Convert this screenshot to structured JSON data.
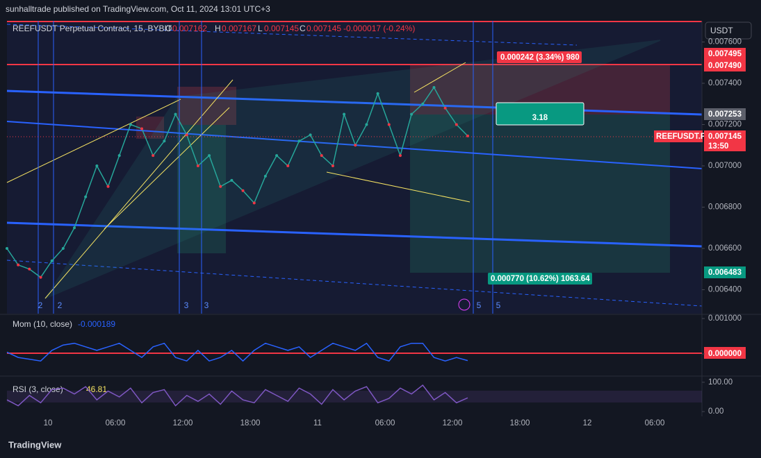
{
  "header": {
    "published": "sunhalltrade published on TradingView.com, Oct 11, 2024 13:01 UTC+3",
    "symbol": "REEFUSDT Perpetual Contract, 15, BYBIT",
    "o_label": "O",
    "open": "0.007162",
    "h_label": "H",
    "high": "0.007167",
    "l_label": "L",
    "low": "0.007145",
    "c_label": "C",
    "close": "0.007145",
    "change": "-0.000017 (-0.24%)",
    "currency": "USDT"
  },
  "price_axis": {
    "ylim": [
      0.006284,
      0.0077025
    ],
    "yticks": [
      {
        "value": 0.0076,
        "label": "0.007600"
      },
      {
        "value": 0.0074,
        "label": "0.007400"
      },
      {
        "value": 0.0072,
        "label": "0.007200"
      },
      {
        "value": 0.007,
        "label": "0.007000"
      },
      {
        "value": 0.0068,
        "label": "0.006800"
      },
      {
        "value": 0.0066,
        "label": "0.006600"
      },
      {
        "value": 0.0064,
        "label": "0.006400"
      }
    ]
  },
  "badges": {
    "target_top": "0.007495",
    "stop": "0.007490",
    "entry": "0.007253",
    "symbol": "REEFUSDT.P",
    "last": "0.007145",
    "countdown": "13:50",
    "target_low": "0.006483"
  },
  "position_labels": {
    "risk": "0.000242 (3.34%) 980",
    "ratio": "3.18",
    "reward": "0.000770 (10.62%) 1063.64"
  },
  "wave_labels": [
    "2",
    "2",
    "3",
    "3",
    "5",
    "5"
  ],
  "time_axis": [
    "10",
    "06:00",
    "12:00",
    "18:00",
    "11",
    "06:00",
    "12:00",
    "18:00",
    "12",
    "06:00"
  ],
  "price": [
    0.0066,
    0.00652,
    0.0065,
    0.00646,
    0.00654,
    0.0066,
    0.0067,
    0.00685,
    0.007,
    0.0069,
    0.00705,
    0.0072,
    0.00718,
    0.00705,
    0.00712,
    0.00725,
    0.00715,
    0.007,
    0.00705,
    0.0069,
    0.00693,
    0.00688,
    0.00682,
    0.00695,
    0.00705,
    0.007,
    0.00712,
    0.00715,
    0.00705,
    0.007,
    0.00725,
    0.0071,
    0.0072,
    0.00735,
    0.0072,
    0.00705,
    0.00725,
    0.0073,
    0.00738,
    0.00728,
    0.0072,
    0.007145
  ],
  "momentum": {
    "title": "Mom (10, close)",
    "current": "-0.000189",
    "ylim": [
      -0.000608,
      0.001118
    ],
    "yticks": [
      {
        "value": 0.001,
        "label": "0.001000"
      },
      {
        "value": 0,
        "label": "0.000000"
      }
    ],
    "values": [
      5e-05,
      -0.0001,
      -0.00015,
      -0.0002,
      0.0001,
      0.00025,
      0.0003,
      0.0002,
      0.0001,
      0.0002,
      0.0003,
      0.0001,
      -0.0001,
      0.0002,
      0.0003,
      -0.0001,
      -0.0002,
      0.0001,
      -0.0002,
      -0.0001,
      0.0001,
      -0.0002,
      0.0001,
      0.0003,
      0.0002,
      0.0001,
      0.0002,
      -0.0001,
      0.0001,
      0.0003,
      0.0002,
      0.0001,
      0.0003,
      -0.0001,
      -0.0002,
      0.0002,
      0.0003,
      0.0003,
      -0.0001,
      -0.0002,
      -0.0001,
      -0.000189
    ]
  },
  "rsi": {
    "title": "RSI (3, close)",
    "current": "46.81",
    "ylim": [
      -16.3,
      118.6
    ],
    "yticks": [
      {
        "value": 100,
        "label": "100.00"
      },
      {
        "value": 0,
        "label": "0.00"
      }
    ],
    "values": [
      40,
      20,
      55,
      30,
      75,
      80,
      60,
      85,
      40,
      70,
      50,
      80,
      30,
      65,
      75,
      20,
      55,
      35,
      60,
      25,
      70,
      40,
      30,
      75,
      55,
      35,
      80,
      60,
      25,
      75,
      40,
      70,
      85,
      30,
      45,
      80,
      60,
      90,
      40,
      65,
      30,
      46.81
    ]
  },
  "footer": "TradingView"
}
